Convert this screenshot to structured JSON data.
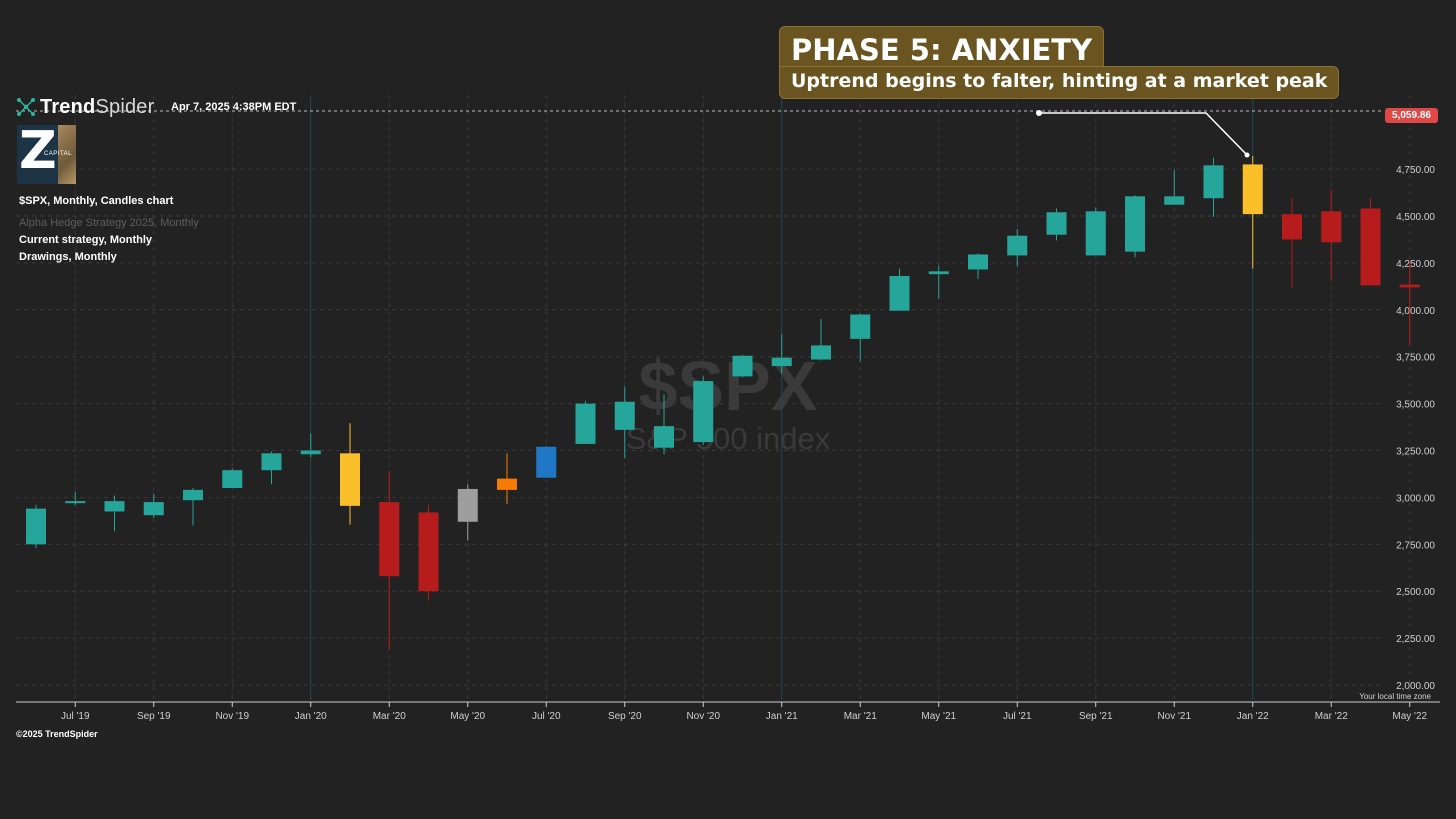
{
  "brand": {
    "name_bold": "Trend",
    "name_thin": "Spider",
    "icon": "spider-network-icon",
    "accent": "#2bb5a0"
  },
  "timestamp": "Apr 7, 2025 4:38PM EDT",
  "sponsor_logo": {
    "letter": "Z",
    "caption": "CAPITAL"
  },
  "info_lines": {
    "symbol": "$SPX, Monthly, Candles chart",
    "strategy_dim": "Alpha Hedge Strategy 2025, Monthly",
    "current": "Current strategy, Monthly",
    "drawings": "Drawings, Monthly"
  },
  "callout": {
    "title": "PHASE 5: ANXIETY",
    "subtitle": "Uptrend begins to falter, hinting at a market peak"
  },
  "watermark": {
    "symbol": "$SPX",
    "name": "S&P 500 index"
  },
  "price_badge": "5,059.86",
  "timezone_note": "Your local time zone",
  "footer": "©2025 TrendSpider",
  "colors": {
    "background": "#222222",
    "up": "#26a69a",
    "down": "#b71c1c",
    "highlight_yellow": "#f9c02b",
    "highlight_gray": "#9e9e9e",
    "highlight_orange": "#f57c00",
    "highlight_blue": "#1f77c5",
    "badge": "#e04848",
    "grid": "#3a3a3a"
  },
  "chart_data": {
    "type": "candlestick",
    "title": "$SPX, Monthly, Candles chart",
    "ylim": [
      1950,
      5100
    ],
    "y_ticks": [
      "2,000.00",
      "2,250.00",
      "2,500.00",
      "2,750.00",
      "3,000.00",
      "3,250.00",
      "3,500.00",
      "3,750.00",
      "4,000.00",
      "4,250.00",
      "4,500.00",
      "4,750.00"
    ],
    "y_tick_values": [
      2000,
      2250,
      2500,
      2750,
      3000,
      3250,
      3500,
      3750,
      4000,
      4250,
      4500,
      4750
    ],
    "x_ticks": [
      "Jul '19",
      "Sep '19",
      "Nov '19",
      "Jan '20",
      "Mar '20",
      "May '20",
      "Jul '20",
      "Sep '20",
      "Nov '20",
      "Jan '21",
      "Mar '21",
      "May '21",
      "Jul '21",
      "Sep '21",
      "Nov '21",
      "Jan '22",
      "Mar '22",
      "May '22"
    ],
    "x_tick_index": [
      1,
      3,
      5,
      7,
      9,
      11,
      13,
      15,
      17,
      19,
      21,
      23,
      25,
      27,
      29,
      31,
      33,
      35
    ],
    "highlighted_verticals": [
      "Jan '20",
      "Jan '21",
      "Jan '22"
    ],
    "dashed_level": 5059.86,
    "candles": [
      {
        "month": "Jun 2019",
        "open": 2750,
        "high": 2960,
        "low": 2730,
        "close": 2940,
        "color": "up"
      },
      {
        "month": "Jul 2019",
        "open": 2970,
        "high": 3030,
        "low": 2960,
        "close": 2980,
        "color": "up"
      },
      {
        "month": "Aug 2019",
        "open": 2925,
        "high": 3010,
        "low": 2820,
        "close": 2980,
        "color": "up"
      },
      {
        "month": "Sep 2019",
        "open": 2905,
        "high": 3020,
        "low": 2890,
        "close": 2975,
        "color": "up"
      },
      {
        "month": "Oct 2019",
        "open": 2985,
        "high": 3050,
        "low": 2850,
        "close": 3040,
        "color": "up"
      },
      {
        "month": "Nov 2019",
        "open": 3050,
        "high": 3155,
        "low": 3050,
        "close": 3145,
        "color": "up"
      },
      {
        "month": "Dec 2019",
        "open": 3145,
        "high": 3245,
        "low": 3070,
        "close": 3235,
        "color": "up"
      },
      {
        "month": "Jan 2020",
        "open": 3230,
        "high": 3340,
        "low": 3215,
        "close": 3250,
        "color": "up"
      },
      {
        "month": "Feb 2020",
        "open": 2955,
        "high": 3395,
        "low": 2855,
        "close": 3235,
        "color": "yellow"
      },
      {
        "month": "Mar 2020",
        "open": 2975,
        "high": 3140,
        "low": 2190,
        "close": 2580,
        "color": "down"
      },
      {
        "month": "Apr 2020",
        "open": 2920,
        "high": 2960,
        "low": 2450,
        "close": 2500,
        "color": "down"
      },
      {
        "month": "May 2020",
        "open": 2870,
        "high": 3070,
        "low": 2770,
        "close": 3045,
        "color": "gray"
      },
      {
        "month": "Jun 2020",
        "open": 3040,
        "high": 3235,
        "low": 2965,
        "close": 3100,
        "color": "orange"
      },
      {
        "month": "Jul 2020",
        "open": 3105,
        "high": 3275,
        "low": 3105,
        "close": 3270,
        "color": "blue"
      },
      {
        "month": "Aug 2020",
        "open": 3285,
        "high": 3515,
        "low": 3285,
        "close": 3500,
        "color": "up"
      },
      {
        "month": "Sep 2020",
        "open": 3360,
        "high": 3590,
        "low": 3210,
        "close": 3510,
        "color": "up"
      },
      {
        "month": "Oct 2020",
        "open": 3380,
        "high": 3550,
        "low": 3230,
        "close": 3265,
        "color": "up"
      },
      {
        "month": "Nov 2020",
        "open": 3295,
        "high": 3645,
        "low": 3280,
        "close": 3620,
        "color": "up"
      },
      {
        "month": "Dec 2020",
        "open": 3645,
        "high": 3760,
        "low": 3640,
        "close": 3755,
        "color": "up"
      },
      {
        "month": "Jan 2021",
        "open": 3700,
        "high": 3870,
        "low": 3660,
        "close": 3745,
        "color": "up"
      },
      {
        "month": "Feb 2021",
        "open": 3735,
        "high": 3950,
        "low": 3730,
        "close": 3810,
        "color": "up"
      },
      {
        "month": "Mar 2021",
        "open": 3845,
        "high": 3980,
        "low": 3725,
        "close": 3975,
        "color": "up"
      },
      {
        "month": "Apr 2021",
        "open": 3995,
        "high": 4220,
        "low": 3995,
        "close": 4180,
        "color": "up"
      },
      {
        "month": "May 2021",
        "open": 4190,
        "high": 4235,
        "low": 4060,
        "close": 4205,
        "color": "up"
      },
      {
        "month": "Jun 2021",
        "open": 4215,
        "high": 4300,
        "low": 4165,
        "close": 4295,
        "color": "up"
      },
      {
        "month": "Jul 2021",
        "open": 4290,
        "high": 4430,
        "low": 4230,
        "close": 4395,
        "color": "up"
      },
      {
        "month": "Aug 2021",
        "open": 4400,
        "high": 4540,
        "low": 4370,
        "close": 4520,
        "color": "up"
      },
      {
        "month": "Sep 2021",
        "open": 4290,
        "high": 4545,
        "low": 4290,
        "close": 4525,
        "color": "up"
      },
      {
        "month": "Oct 2021",
        "open": 4310,
        "high": 4610,
        "low": 4280,
        "close": 4605,
        "color": "up"
      },
      {
        "month": "Nov 2021",
        "open": 4560,
        "high": 4745,
        "low": 4560,
        "close": 4605,
        "color": "up"
      },
      {
        "month": "Dec 2021",
        "open": 4595,
        "high": 4810,
        "low": 4495,
        "close": 4770,
        "color": "up"
      },
      {
        "month": "Jan 2022",
        "open": 4775,
        "high": 4820,
        "low": 4220,
        "close": 4510,
        "color": "yellow"
      },
      {
        "month": "Feb 2022",
        "open": 4510,
        "high": 4595,
        "low": 4115,
        "close": 4375,
        "color": "down"
      },
      {
        "month": "Mar 2022",
        "open": 4525,
        "high": 4640,
        "low": 4160,
        "close": 4360,
        "color": "down"
      },
      {
        "month": "Apr 2022",
        "open": 4540,
        "high": 4595,
        "low": 4130,
        "close": 4130,
        "color": "down"
      },
      {
        "month": "May 2022",
        "open": 4130,
        "high": 4260,
        "low": 3815,
        "close": 4130,
        "color": "down"
      }
    ]
  }
}
